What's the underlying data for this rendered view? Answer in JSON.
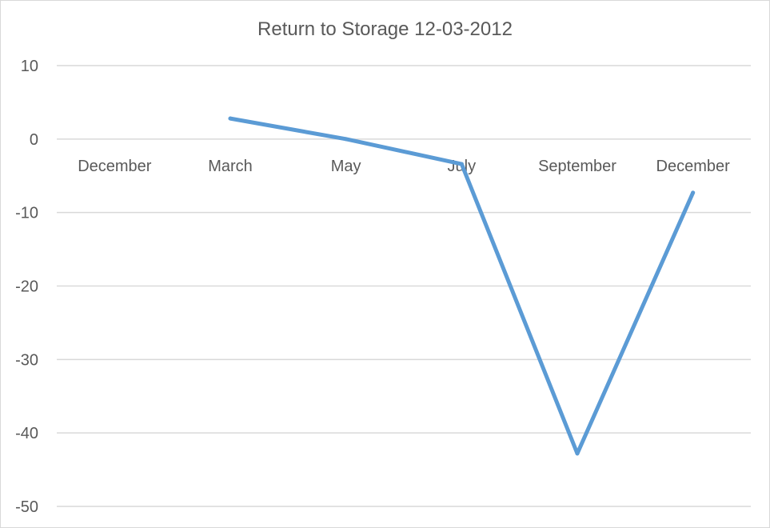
{
  "chart_data": {
    "type": "line",
    "title": "Return to Storage 12-03-2012",
    "xlabel": "",
    "ylabel": "",
    "categories": [
      "December",
      "March",
      "May",
      "July",
      "September",
      "December"
    ],
    "series": [
      {
        "values": [
          null,
          2.8,
          0.0,
          -3.4,
          -42.8,
          -7.3
        ]
      }
    ],
    "ylim": [
      -50,
      10
    ],
    "yticks": [
      10,
      0,
      -10,
      -20,
      -30,
      -40,
      -50
    ],
    "grid": true,
    "legend": "none",
    "colors": {
      "line": "#5b9bd5",
      "grid": "#d9d9d9",
      "text": "#595959"
    }
  }
}
